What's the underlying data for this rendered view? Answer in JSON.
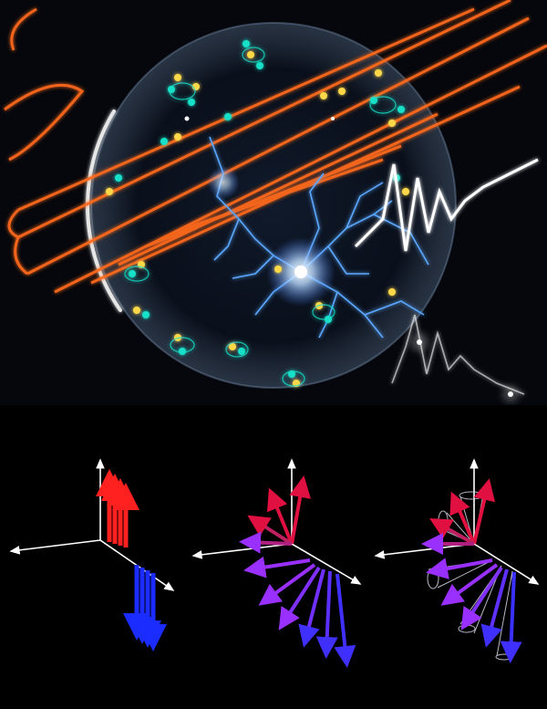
{
  "figure": {
    "top_panel": {
      "scene": "glowing-sphere-with-laser-and-electric-discharge",
      "colors": {
        "background": "#05070d",
        "laser": "#ff6a1a",
        "discharge": "#5aa8ff",
        "spin_cyan": "#19e0c8",
        "spin_yellow": "#ffd84a",
        "waveform": "#ffffff"
      }
    },
    "bottom_panel": {
      "diagrams": [
        {
          "name": "spin-aligned",
          "arrow_colors": [
            "#ff2020",
            "#1a2cff"
          ]
        },
        {
          "name": "spin-tilted",
          "arrow_colors": [
            "#e01040",
            "#9a30ff",
            "#3a30ff"
          ]
        },
        {
          "name": "spin-precession",
          "arrow_colors": [
            "#e01040",
            "#9a30ff",
            "#2020ff"
          ]
        }
      ],
      "axis_color": "#ffffff"
    }
  }
}
